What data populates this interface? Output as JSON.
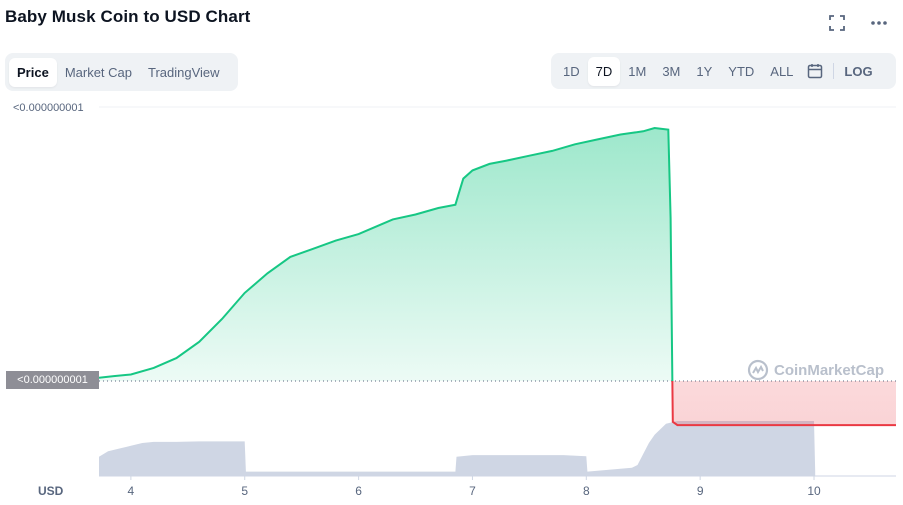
{
  "title": "Baby Musk Coin to USD Chart",
  "header_icons": [
    "fullscreen-icon",
    "more-icon"
  ],
  "tabs": [
    {
      "label": "Price",
      "active": true
    },
    {
      "label": "Market Cap",
      "active": false
    },
    {
      "label": "TradingView",
      "active": false
    }
  ],
  "ranges": [
    {
      "label": "1D",
      "active": false
    },
    {
      "label": "7D",
      "active": true
    },
    {
      "label": "1M",
      "active": false
    },
    {
      "label": "3M",
      "active": false
    },
    {
      "label": "1Y",
      "active": false
    },
    {
      "label": "YTD",
      "active": false
    },
    {
      "label": "ALL",
      "active": false
    }
  ],
  "calendar_icon": "calendar-icon",
  "log_label": "LOG",
  "y_top_label": "<0.000000001",
  "current_price_label": "<0.000000001",
  "currency_label": "USD",
  "watermark": "CoinMarketCap",
  "colors": {
    "up": "#16c784",
    "down": "#ea3943",
    "volume": "#cfd6e4"
  },
  "chart_data": {
    "type": "area",
    "x_ticks": [
      "4",
      "5",
      "6",
      "7",
      "8",
      "9",
      "10"
    ],
    "x": [
      3.72,
      3.85,
      4.0,
      4.2,
      4.4,
      4.6,
      4.8,
      5.0,
      5.2,
      5.4,
      5.6,
      5.8,
      6.0,
      6.2,
      6.3,
      6.5,
      6.7,
      6.85,
      6.88,
      6.92,
      7.0,
      7.15,
      7.3,
      7.5,
      7.7,
      7.9,
      8.1,
      8.3,
      8.4,
      8.5,
      8.6,
      8.72,
      8.74,
      8.76,
      8.8,
      9.0,
      9.5,
      10.0,
      10.72
    ],
    "y": [
      0.02,
      0.03,
      0.04,
      0.08,
      0.14,
      0.24,
      0.38,
      0.54,
      0.66,
      0.76,
      0.81,
      0.86,
      0.9,
      0.96,
      0.99,
      1.02,
      1.06,
      1.08,
      1.15,
      1.24,
      1.29,
      1.33,
      1.35,
      1.38,
      1.41,
      1.45,
      1.48,
      1.51,
      1.52,
      1.53,
      1.55,
      1.54,
      1.0,
      -0.25,
      -0.27,
      -0.27,
      -0.27,
      -0.27,
      -0.27
    ],
    "baseline": 0,
    "volume": {
      "x": [
        3.72,
        3.8,
        3.9,
        4.0,
        4.1,
        4.2,
        4.4,
        4.6,
        4.8,
        5.0,
        5.01,
        6.85,
        6.86,
        7.0,
        7.2,
        7.4,
        7.6,
        7.8,
        8.0,
        8.01,
        8.4,
        8.45,
        8.55,
        8.6,
        8.65,
        8.7,
        8.8,
        9.0,
        9.2,
        9.4,
        9.6,
        9.8,
        10.0,
        10.01
      ],
      "y": [
        0.35,
        0.45,
        0.5,
        0.55,
        0.6,
        0.62,
        0.62,
        0.63,
        0.63,
        0.63,
        0.08,
        0.08,
        0.35,
        0.38,
        0.38,
        0.38,
        0.38,
        0.38,
        0.36,
        0.08,
        0.15,
        0.2,
        0.6,
        0.75,
        0.85,
        0.95,
        1.0,
        1.0,
        1.0,
        1.0,
        1.0,
        1.0,
        1.0,
        0.08
      ]
    }
  }
}
